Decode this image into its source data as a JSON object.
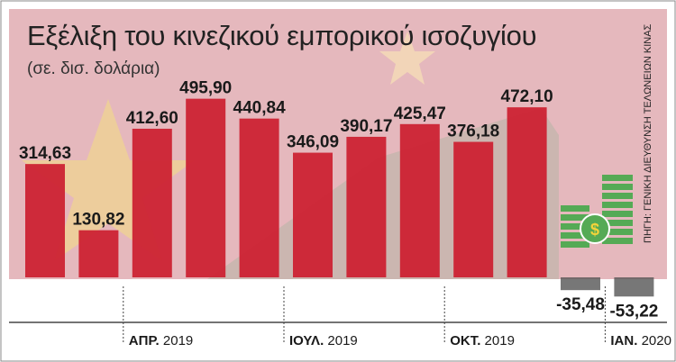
{
  "title": "Εξέλιξη του κινεζικού εμπορικού ισοζυγίου",
  "subtitle": "(σε. δισ. δολάρια)",
  "source": "ΠΗΓΗ: ΓΕΝΙΚΗ ΔΙΕΥΘΥΝΣΗ ΤΕΛΩΝΕΙΩΝ ΚΙΝΑΣ",
  "colors": {
    "background_red": "#e5b8bd",
    "bar_red": "#cc2233",
    "star_yellow": "#f4d33a",
    "negative_bar": "#555555",
    "dollar_icon_green": "#55aa55"
  },
  "icons": [
    "china-flag-stars",
    "yuan-banknote",
    "dollar-coin-stack-icon"
  ],
  "chart_data": {
    "type": "bar",
    "categories": [
      "",
      "",
      "ΑΠΡ. 2019",
      "",
      "",
      "ΙΟΥΛ. 2019",
      "",
      "",
      "ΟΚΤ. 2019",
      "",
      "",
      "ΙΑΝ. 2020"
    ],
    "values": [
      314.63,
      130.82,
      412.6,
      495.9,
      440.84,
      346.09,
      390.17,
      425.47,
      376.18,
      472.1,
      -35.48,
      -53.22
    ],
    "value_labels": [
      "314,63",
      "130,82",
      "412,60",
      "495,90",
      "440,84",
      "346,09",
      "390,17",
      "425,47",
      "376,18",
      "472,10",
      "-35,48",
      "-53,22"
    ],
    "ylim": [
      -60,
      520
    ],
    "grid": false,
    "legend": "none"
  }
}
